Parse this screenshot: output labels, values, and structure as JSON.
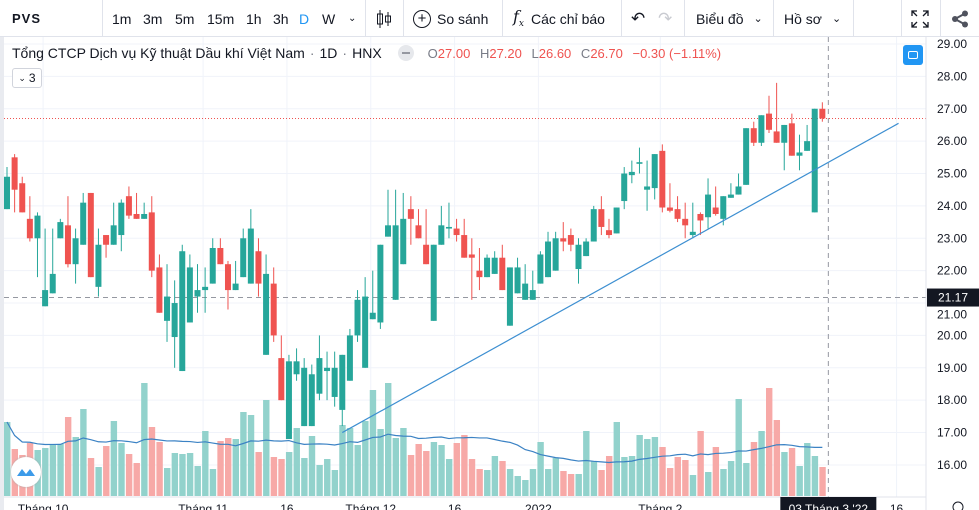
{
  "toolbar": {
    "symbol": "PVS",
    "intervals": [
      "1m",
      "3m",
      "5m",
      "15m",
      "1h",
      "3h",
      "D",
      "W"
    ],
    "active_interval": "D",
    "compare_label": "So sánh",
    "indicators_label": "Các chỉ báo",
    "chart_label": "Biểu đồ",
    "profile_label": "Hồ sơ"
  },
  "legend": {
    "title": "Tổng CTCP Dịch vụ Kỹ thuật Dầu khí Việt Nam",
    "sep": "·",
    "interval": "1D",
    "exchange": "HNX",
    "o_label": "O",
    "o": "27.00",
    "h_label": "H",
    "h": "27.20",
    "l_label": "L",
    "l": "26.60",
    "c_label": "C",
    "c": "26.70",
    "change": "−0.30 (−1.11%)",
    "indicators_count": "3"
  },
  "colors": {
    "up": "#26a69a",
    "down": "#ef5350",
    "up_vol": "#92d2cc",
    "down_vol": "#f7a9a7",
    "accent": "#2196f3",
    "trendline": "#3d8fd1",
    "vol_ma": "#3b82c4"
  },
  "price_axis": {
    "ticks": [
      "29.00",
      "28.00",
      "27.00",
      "26.00",
      "25.00",
      "24.00",
      "23.00",
      "22.00",
      "21.00",
      "20.00",
      "19.00",
      "18.00",
      "17.00",
      "16.00"
    ],
    "crosshair_price": "21.17"
  },
  "time_axis": {
    "ticks": [
      {
        "label": "Tháng 10",
        "i": 5
      },
      {
        "label": "Tháng 11",
        "i": 26
      },
      {
        "label": "16",
        "i": 37
      },
      {
        "label": "Tháng 12",
        "i": 48
      },
      {
        "label": "16",
        "i": 59
      },
      {
        "label": "2022",
        "i": 70
      },
      {
        "label": "Tháng 2",
        "i": 86
      },
      {
        "label": "16",
        "i": 117
      }
    ],
    "crosshair_date": "03 Tháng 3 '22"
  },
  "chart_data": {
    "type": "candlestick",
    "symbol": "PVS",
    "interval": "1D",
    "last_price": 26.7,
    "crosshair_price": 21.17,
    "ylim": [
      15.3,
      29.4
    ],
    "ohlc": [
      [
        23.9,
        25.2,
        23.9,
        24.9
      ],
      [
        25.5,
        25.6,
        23.8,
        24.5
      ],
      [
        24.7,
        24.9,
        23.8,
        23.8
      ],
      [
        23.6,
        24.3,
        22.9,
        23.0
      ],
      [
        23.0,
        23.8,
        21.8,
        23.7
      ],
      [
        20.9,
        23.3,
        20.9,
        21.4
      ],
      [
        21.3,
        23.3,
        21.3,
        21.9
      ],
      [
        23.0,
        23.6,
        23.0,
        23.5
      ],
      [
        23.4,
        24.3,
        22.1,
        22.2
      ],
      [
        22.2,
        23.3,
        21.6,
        23.0
      ],
      [
        22.8,
        24.4,
        22.8,
        24.1
      ],
      [
        24.4,
        24.4,
        21.8,
        21.8
      ],
      [
        21.5,
        23.3,
        21.2,
        22.8
      ],
      [
        23.1,
        23.1,
        22.4,
        22.8
      ],
      [
        22.8,
        24.1,
        22.8,
        23.4
      ],
      [
        23.1,
        24.2,
        22.6,
        24.1
      ],
      [
        24.3,
        24.6,
        23.6,
        23.7
      ],
      [
        23.75,
        24.4,
        23.6,
        23.6
      ],
      [
        23.6,
        24.1,
        23.6,
        23.75
      ],
      [
        23.8,
        24.3,
        21.8,
        22.0
      ],
      [
        22.1,
        22.5,
        20.7,
        20.7
      ],
      [
        20.45,
        22.2,
        19.8,
        21.2
      ],
      [
        19.95,
        21.7,
        19.0,
        21.0
      ],
      [
        18.9,
        22.8,
        18.9,
        22.6
      ],
      [
        20.4,
        22.5,
        20.4,
        22.1
      ],
      [
        21.2,
        22.2,
        20.7,
        21.4
      ],
      [
        21.4,
        22.1,
        20.7,
        21.5
      ],
      [
        21.6,
        23.0,
        21.6,
        22.7
      ],
      [
        22.7,
        23.0,
        22.2,
        22.2
      ],
      [
        22.2,
        22.3,
        20.8,
        21.4
      ],
      [
        21.4,
        22.3,
        21.4,
        21.6
      ],
      [
        21.8,
        23.3,
        21.8,
        23.0
      ],
      [
        21.6,
        23.9,
        21.6,
        23.3
      ],
      [
        22.6,
        23.0,
        21.2,
        21.6
      ],
      [
        19.4,
        22.5,
        19.4,
        21.9
      ],
      [
        21.6,
        22.1,
        19.8,
        20.0
      ],
      [
        19.3,
        20.0,
        18.0,
        18.0
      ],
      [
        16.8,
        19.4,
        16.8,
        19.2
      ],
      [
        18.8,
        19.6,
        18.6,
        19.2
      ],
      [
        17.2,
        19.3,
        17.2,
        19.0
      ],
      [
        17.2,
        19.1,
        17.2,
        18.8
      ],
      [
        18.2,
        20.0,
        18.0,
        19.3
      ],
      [
        18.9,
        19.5,
        18.0,
        19.0
      ],
      [
        18.1,
        19.5,
        17.8,
        19.0
      ],
      [
        17.7,
        19.4,
        17.2,
        19.4
      ],
      [
        18.6,
        20.2,
        18.6,
        20.0
      ],
      [
        20.0,
        21.4,
        19.8,
        21.1
      ],
      [
        19.0,
        21.8,
        19.0,
        21.2
      ],
      [
        20.5,
        22.0,
        20.5,
        20.7
      ],
      [
        20.4,
        22.8,
        20.2,
        22.8
      ],
      [
        23.05,
        24.5,
        23.05,
        23.4
      ],
      [
        21.1,
        24.5,
        21.1,
        23.4
      ],
      [
        22.2,
        24.4,
        22.2,
        23.6
      ],
      [
        23.9,
        24.3,
        22.8,
        23.6
      ],
      [
        23.4,
        23.9,
        23.0,
        23.0
      ],
      [
        22.8,
        23.9,
        22.2,
        22.2
      ],
      [
        20.45,
        22.8,
        20.45,
        22.8
      ],
      [
        22.8,
        24.0,
        22.8,
        23.4
      ],
      [
        23.3,
        24.1,
        23.0,
        23.35
      ],
      [
        23.3,
        23.6,
        22.9,
        23.1
      ],
      [
        23.1,
        23.6,
        22.4,
        22.4
      ],
      [
        22.5,
        23.0,
        21.1,
        22.4
      ],
      [
        22.0,
        22.7,
        21.4,
        21.8
      ],
      [
        21.8,
        22.5,
        21.8,
        22.4
      ],
      [
        21.9,
        22.6,
        21.9,
        22.4
      ],
      [
        22.4,
        22.8,
        21.4,
        21.4
      ],
      [
        20.3,
        22.1,
        20.3,
        22.1
      ],
      [
        21.3,
        22.4,
        21.3,
        22.1
      ],
      [
        21.1,
        22.2,
        21.1,
        21.6
      ],
      [
        21.1,
        22.0,
        21.1,
        21.4
      ],
      [
        21.6,
        22.6,
        21.6,
        22.5
      ],
      [
        21.8,
        23.2,
        21.8,
        22.9
      ],
      [
        22.0,
        23.2,
        22.0,
        23.0
      ],
      [
        23.0,
        23.5,
        22.6,
        22.9
      ],
      [
        23.1,
        23.3,
        22.6,
        22.8
      ],
      [
        22.05,
        23.0,
        21.6,
        22.8
      ],
      [
        22.45,
        23.0,
        22.45,
        22.9
      ],
      [
        22.9,
        24.0,
        22.9,
        23.9
      ],
      [
        23.9,
        24.3,
        23.1,
        23.35
      ],
      [
        23.25,
        23.6,
        23.0,
        23.1
      ],
      [
        23.15,
        23.95,
        23.15,
        23.95
      ],
      [
        24.15,
        25.2,
        23.9,
        25.0
      ],
      [
        24.95,
        25.4,
        24.7,
        25.05
      ],
      [
        25.3,
        25.8,
        25.0,
        25.35
      ],
      [
        24.5,
        25.4,
        23.85,
        24.6
      ],
      [
        24.55,
        25.6,
        24.2,
        25.6
      ],
      [
        25.7,
        25.9,
        23.8,
        23.95
      ],
      [
        23.95,
        24.7,
        23.8,
        23.85
      ],
      [
        23.9,
        24.3,
        23.5,
        23.6
      ],
      [
        23.6,
        24.1,
        23.0,
        23.4
      ],
      [
        23.1,
        24.1,
        23.0,
        23.2
      ],
      [
        23.75,
        23.8,
        23.1,
        23.55
      ],
      [
        23.65,
        24.85,
        23.3,
        24.35
      ],
      [
        23.95,
        24.6,
        23.7,
        23.75
      ],
      [
        23.6,
        24.3,
        23.4,
        24.3
      ],
      [
        24.25,
        24.7,
        24.25,
        24.35
      ],
      [
        24.35,
        25.0,
        24.35,
        24.6
      ],
      [
        24.65,
        26.4,
        24.65,
        26.4
      ],
      [
        26.4,
        26.6,
        25.85,
        25.95
      ],
      [
        25.95,
        26.8,
        25.85,
        26.8
      ],
      [
        26.85,
        27.4,
        26.25,
        26.35
      ],
      [
        26.3,
        27.8,
        25.95,
        25.95
      ],
      [
        25.95,
        26.5,
        25.1,
        26.5
      ],
      [
        26.55,
        26.85,
        25.55,
        25.55
      ],
      [
        25.55,
        26.2,
        25.1,
        25.65
      ],
      [
        25.7,
        26.5,
        25.7,
        26.0
      ],
      [
        23.8,
        27.0,
        23.8,
        27.0
      ],
      [
        27.0,
        27.2,
        26.6,
        26.7
      ]
    ],
    "volume_relative": [
      74,
      47,
      41,
      53,
      46,
      48,
      52,
      52,
      79,
      59,
      87,
      38,
      29,
      50,
      75,
      53,
      42,
      33,
      113,
      69,
      54,
      28,
      43,
      42,
      43,
      30,
      65,
      27,
      55,
      58,
      57,
      84,
      81,
      44,
      96,
      39,
      37,
      44,
      68,
      38,
      60,
      31,
      37,
      26,
      71,
      68,
      51,
      75,
      106,
      67,
      113,
      58,
      68,
      41,
      52,
      45,
      54,
      51,
      37,
      53,
      61,
      37,
      27,
      26,
      40,
      35,
      27,
      20,
      16,
      27,
      54,
      27,
      38,
      25,
      22,
      22,
      65,
      35,
      26,
      40,
      74,
      39,
      40,
      61,
      57,
      59,
      49,
      28,
      39,
      36,
      21,
      65,
      24,
      49,
      27,
      35,
      97,
      33,
      54,
      65,
      108,
      76,
      44,
      48,
      30,
      53,
      40,
      29
    ],
    "volume_ma_period": 20,
    "trendline": {
      "from": {
        "i": 44,
        "price": 17.0
      },
      "to": {
        "i": 117,
        "price": 26.55
      }
    }
  }
}
